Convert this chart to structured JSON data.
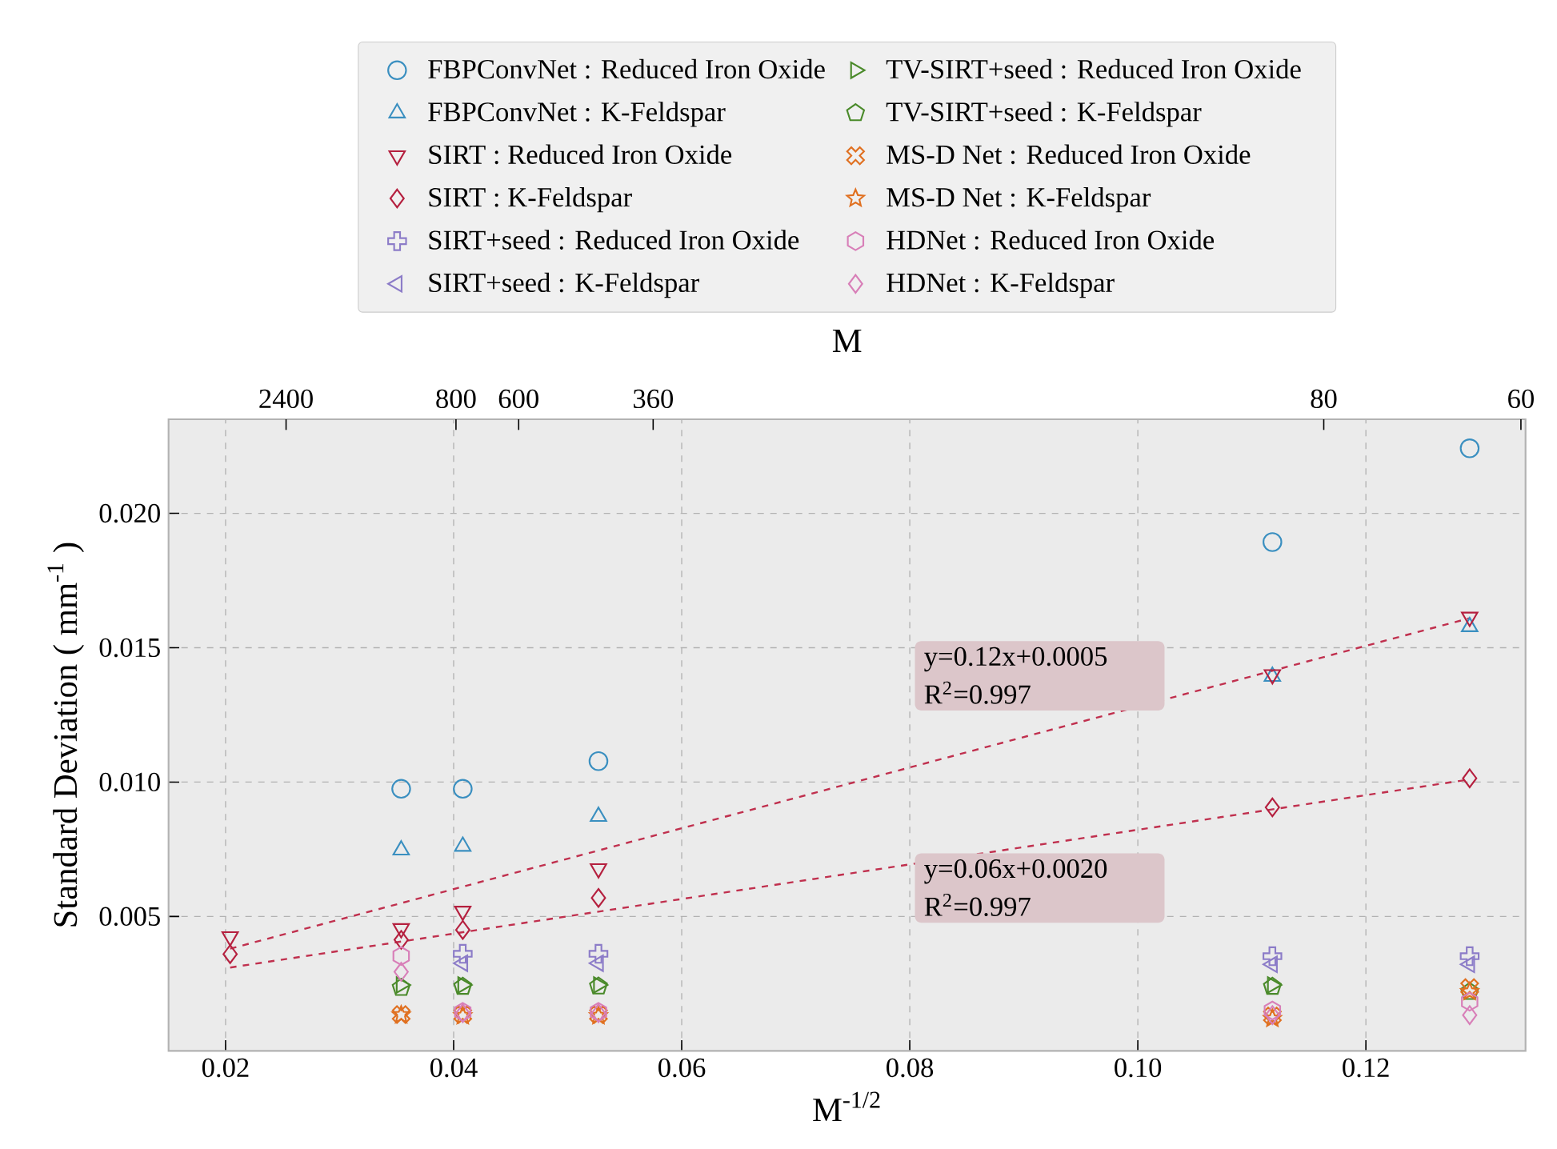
{
  "chart_data": {
    "type": "scatter",
    "xlabel": "M$^{-1/2}$",
    "ylabel": "Standard Deviation ( mm$^{-1}$ )",
    "x2label": "M",
    "x": [
      0.0204,
      0.0354,
      0.0408,
      0.0527,
      0.1118,
      0.1291
    ],
    "xlim": [
      0.015,
      0.134
    ],
    "ylim": [
      0.0,
      0.0235
    ],
    "xticks": [
      0.02,
      0.04,
      0.06,
      0.08,
      {
        "value": 0.1,
        "label": "0.10"
      },
      0.12
    ],
    "yticks": [
      0.005,
      {
        "value": 0.01,
        "label": "0.010"
      },
      0.015,
      {
        "value": 0.02,
        "label": "0.020"
      }
    ],
    "grid": true,
    "legend": "top",
    "series": [
      {
        "name": "FBPConvNet : Reduced Iron Oxide",
        "color": "#3a8fc0",
        "marker": "circle",
        "values": [
          null,
          0.00975,
          0.00975,
          0.01078,
          0.01893,
          0.02242
        ]
      },
      {
        "name": "FBPConvNet : K-Feldspar",
        "color": "#3a8fc0",
        "marker": "triangle",
        "values": [
          null,
          0.00747,
          0.00761,
          0.00872,
          0.01393,
          0.01578
        ]
      },
      {
        "name": "SIRT : Reduced Iron Oxide",
        "color": "#b5203f",
        "marker": "triangle-down",
        "values": [
          0.00425,
          0.00455,
          0.0052,
          0.00678,
          0.014,
          0.01614
        ]
      },
      {
        "name": "SIRT : K-Feldspar",
        "color": "#b5203f",
        "marker": "diamond",
        "values": [
          0.0036,
          0.00413,
          0.0045,
          0.00569,
          0.00906,
          0.01014
        ]
      },
      {
        "name": "SIRT+seed : Reduced Iron Oxide",
        "color": "#8c7cc8",
        "marker": "plus",
        "values": [
          null,
          null,
          0.00361,
          0.00361,
          0.00352,
          0.00352
        ]
      },
      {
        "name": "SIRT+seed : K-Feldspar",
        "color": "#8c7cc8",
        "marker": "triangle-left",
        "values": [
          null,
          null,
          0.00326,
          0.00326,
          0.00322,
          0.00322
        ]
      },
      {
        "name": "TV-SIRT+seed : Reduced Iron Oxide",
        "color": "#4a8a2a",
        "marker": "triangle-right",
        "values": [
          null,
          0.00245,
          0.00245,
          0.00245,
          0.00245,
          null
        ]
      },
      {
        "name": "TV-SIRT+seed : K-Feldspar",
        "color": "#4a8a2a",
        "values": [
          null,
          0.00235,
          0.00239,
          0.0024,
          0.00239,
          0.0022
        ]
      },
      {
        "name": "MS-D Net : Reduced Iron Oxide",
        "color": "#e07020",
        "marker": "x",
        "values": [
          null,
          0.00135,
          0.00135,
          0.00135,
          0.0013,
          0.00235
        ]
      },
      {
        "name": "MS-D Net : K-Feldspar",
        "color": "#e07020",
        "marker": "star",
        "values": [
          null,
          0.00133,
          0.0013,
          0.0013,
          0.0012,
          0.0022
        ]
      },
      {
        "name": "HDNet : Reduced Iron Oxide",
        "color": "#d87fb8",
        "values": [
          null,
          0.00353,
          0.00145,
          0.00145,
          0.0015,
          0.00183
        ]
      },
      {
        "name": "HDNet : K-Feldspar",
        "color": "#d87fb8",
        "marker": "diamond",
        "values": [
          null,
          0.00294,
          0.0014,
          0.0014,
          0.00133,
          0.00133
        ]
      },
      {
        "type": "line",
        "color": "#c0304e",
        "line_style": "dashed",
        "marker": "none",
        "values": [
          0.0038,
          null,
          null,
          null,
          null,
          0.0161
        ]
      },
      {
        "type": "line",
        "color": "#c0304e",
        "line_style": "dashed",
        "marker": "none",
        "values": [
          0.0031,
          null,
          null,
          null,
          null,
          0.0101
        ]
      }
    ],
    "annotations": [
      "y=0.12x+0.0005",
      "R$^{2}$=0.997",
      "y=0.06x+0.0020",
      "R$^{2}$=0.997",
      "2400",
      "800",
      "600",
      "360",
      "80",
      "60"
    ]
  }
}
